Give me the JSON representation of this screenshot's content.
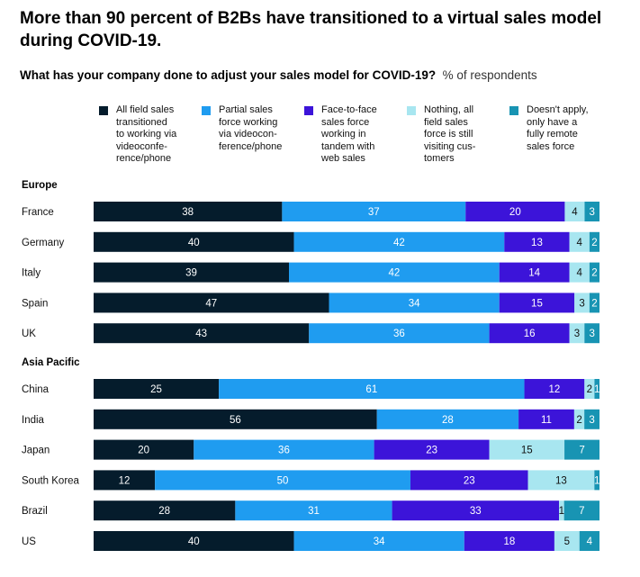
{
  "title": "More than 90 percent of B2Bs have transitioned to a virtual sales model during COVID-19.",
  "question": "What has your company done to adjust your sales model for COVID-19?",
  "unit": "% of respondents",
  "colors": {
    "all_field_sales": "#051c2c",
    "partial_sales": "#1f9cf0",
    "face_to_face": "#3c14d9",
    "nothing": "#a8e6f0",
    "doesnt_apply": "#1894b3"
  },
  "legend": [
    {
      "key": "all_field_sales",
      "label": "All field sales transitioned to working via videoconference/phone",
      "label_lines": [
        "All field sales",
        "transitioned",
        "to working via",
        "videoconfe-",
        "rence/phone"
      ],
      "color": "#051c2c"
    },
    {
      "key": "partial_sales",
      "label": "Partial sales force working via videoconference/phone",
      "label_lines": [
        "Partial sales",
        "force working",
        "via videocon-",
        "ference/phone"
      ],
      "color": "#1f9cf0"
    },
    {
      "key": "face_to_face",
      "label": "Face-to-face sales force working in tandem with web sales",
      "label_lines": [
        "Face-to-face",
        "sales force",
        "working in",
        "tandem with",
        "web sales"
      ],
      "color": "#3c14d9"
    },
    {
      "key": "nothing",
      "label": "Nothing, all field sales force is still visiting customers",
      "label_lines": [
        "Nothing, all",
        "field sales",
        "force is still",
        "visiting cus-",
        "tomers"
      ],
      "color": "#a8e6f0"
    },
    {
      "key": "doesnt_apply",
      "label": "Doesn't apply, only have a fully remote sales force",
      "label_lines": [
        "Doesn't apply,",
        "only have a",
        "fully remote",
        "sales force"
      ],
      "color": "#1894b3"
    }
  ],
  "chart_data": {
    "type": "bar",
    "orientation": "horizontal",
    "stacked": true,
    "title": "More than 90 percent of B2Bs have transitioned to a virtual sales model during COVID-19.",
    "subtitle": "What has your company done to adjust your sales model for COVID-19?",
    "unit": "% of respondents",
    "series_names": [
      "All field sales transitioned to working via videoconference/phone",
      "Partial sales force working via videoconference/phone",
      "Face-to-face sales force working in tandem with web sales",
      "Nothing, all field sales force is still visiting customers",
      "Doesn't apply, only have a fully remote sales force"
    ],
    "groups": [
      {
        "name": "Europe",
        "rows": [
          {
            "label": "France",
            "values": [
              38,
              37,
              20,
              4,
              3
            ]
          },
          {
            "label": "Germany",
            "values": [
              40,
              42,
              13,
              4,
              2
            ]
          },
          {
            "label": "Italy",
            "values": [
              39,
              42,
              14,
              4,
              2
            ]
          },
          {
            "label": "Spain",
            "values": [
              47,
              34,
              15,
              3,
              2
            ]
          },
          {
            "label": "UK",
            "values": [
              43,
              36,
              16,
              3,
              3
            ]
          }
        ]
      },
      {
        "name": "Asia Pacific",
        "rows": [
          {
            "label": "China",
            "values": [
              25,
              61,
              12,
              2,
              1
            ]
          },
          {
            "label": "India",
            "values": [
              56,
              28,
              11,
              2,
              3
            ]
          },
          {
            "label": "Japan",
            "values": [
              20,
              36,
              23,
              15,
              7
            ]
          },
          {
            "label": "South Korea",
            "values": [
              12,
              50,
              23,
              13,
              1
            ]
          },
          {
            "label": "Brazil",
            "values": [
              28,
              31,
              33,
              1,
              7
            ]
          },
          {
            "label": "US",
            "values": [
              40,
              34,
              18,
              5,
              4
            ]
          }
        ]
      }
    ]
  }
}
